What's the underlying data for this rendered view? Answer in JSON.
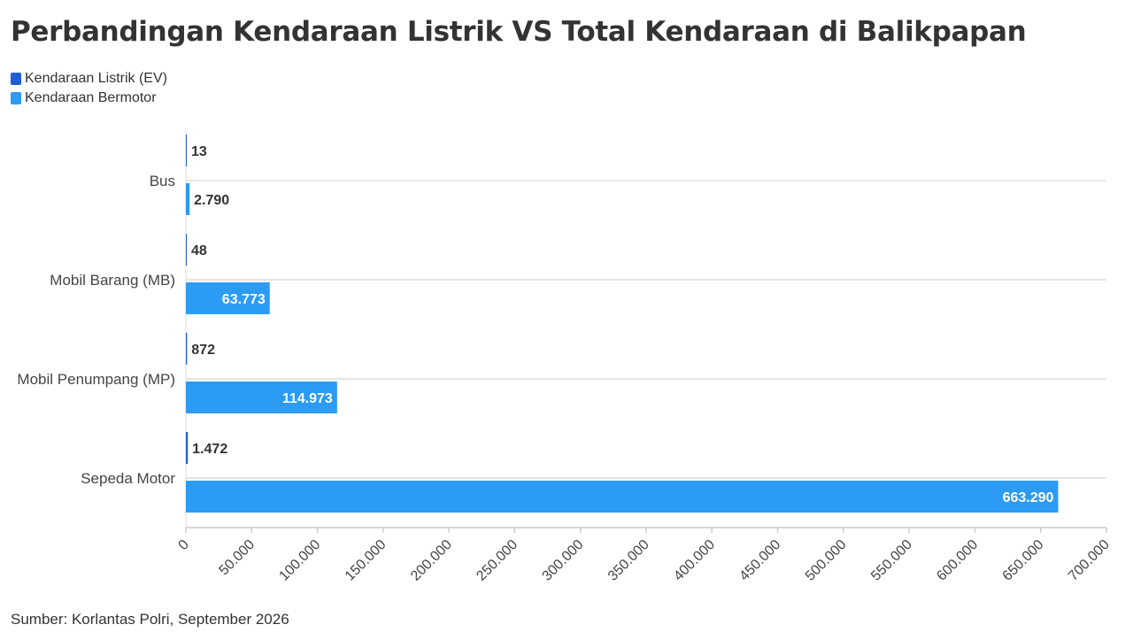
{
  "title": "Perbandingan Kendaraan Listrik VS Total Kendaraan di Balikpapan",
  "source": "Sumber: Korlantas Polri, September 2026",
  "colors": {
    "ev": "#1f5fd6",
    "motor": "#2b9bf4",
    "grid": "#e6e6e6",
    "axis": "#cccccc",
    "label_dark": "#333333",
    "label_light": "#ffffff"
  },
  "chart_data": {
    "type": "bar",
    "orientation": "horizontal",
    "categories": [
      "Bus",
      "Mobil Barang (MB)",
      "Mobil Penumpang (MP)",
      "Sepeda Motor"
    ],
    "series": [
      {
        "name": "Kendaraan Listrik (EV)",
        "values": [
          13,
          48,
          872,
          1472
        ],
        "labels": [
          "13",
          "48",
          "872",
          "1.472"
        ]
      },
      {
        "name": "Kendaraan Bermotor",
        "values": [
          2790,
          63773,
          114973,
          663290
        ],
        "labels": [
          "2.790",
          "63.773",
          "114.973",
          "663.290"
        ]
      }
    ],
    "xlim": [
      0,
      700000
    ],
    "ticks": [
      0,
      50000,
      100000,
      150000,
      200000,
      250000,
      300000,
      350000,
      400000,
      450000,
      500000,
      550000,
      600000,
      650000,
      700000
    ],
    "tick_labels": [
      "0",
      "50.000",
      "100.000",
      "150.000",
      "200.000",
      "250.000",
      "300.000",
      "350.000",
      "400.000",
      "450.000",
      "500.000",
      "550.000",
      "600.000",
      "650.000",
      "700.000"
    ],
    "legend_position": "top-left",
    "grid": true
  }
}
